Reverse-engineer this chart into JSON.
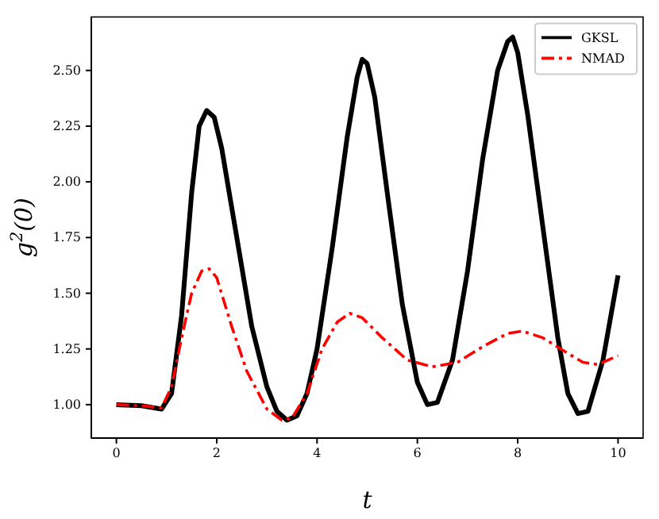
{
  "chart_data": {
    "type": "line",
    "xlabel": "t",
    "ylabel": "g$^{2}$(0)",
    "x": [
      0,
      0.5,
      0.9,
      1.1,
      1.3,
      1.5,
      1.65,
      1.8,
      1.95,
      2.1,
      2.4,
      2.7,
      3.0,
      3.2,
      3.4,
      3.6,
      3.8,
      4.0,
      4.3,
      4.6,
      4.8,
      4.9,
      5.0,
      5.15,
      5.4,
      5.7,
      6.0,
      6.2,
      6.4,
      6.7,
      7.0,
      7.3,
      7.6,
      7.8,
      7.9,
      8.0,
      8.2,
      8.5,
      8.8,
      9.0,
      9.2,
      9.4,
      9.7,
      10.0
    ],
    "series": [
      {
        "name": "GKSL",
        "color": "#000000",
        "line_style": "solid",
        "values": [
          1.0,
          0.995,
          0.98,
          1.05,
          1.4,
          1.95,
          2.25,
          2.32,
          2.29,
          2.15,
          1.75,
          1.35,
          1.08,
          0.97,
          0.93,
          0.95,
          1.05,
          1.25,
          1.7,
          2.2,
          2.47,
          2.55,
          2.53,
          2.38,
          1.95,
          1.45,
          1.1,
          1.0,
          1.01,
          1.2,
          1.6,
          2.1,
          2.5,
          2.63,
          2.65,
          2.58,
          2.3,
          1.8,
          1.3,
          1.05,
          0.96,
          0.97,
          1.2,
          1.58
        ]
      },
      {
        "name": "NMAD",
        "color": "#ff0000",
        "line_style": "dashdot",
        "x": [
          0,
          0.5,
          0.9,
          1.1,
          1.3,
          1.5,
          1.7,
          1.85,
          2.0,
          2.3,
          2.6,
          3.0,
          3.3,
          3.5,
          3.8,
          4.1,
          4.4,
          4.65,
          4.9,
          5.3,
          5.8,
          6.3,
          6.8,
          7.3,
          7.8,
          8.1,
          8.5,
          9.0,
          9.3,
          9.6,
          10.0
        ],
        "values": [
          1.0,
          0.995,
          0.985,
          1.08,
          1.3,
          1.5,
          1.6,
          1.61,
          1.57,
          1.35,
          1.15,
          0.98,
          0.93,
          0.94,
          1.05,
          1.25,
          1.37,
          1.41,
          1.39,
          1.3,
          1.2,
          1.17,
          1.19,
          1.26,
          1.32,
          1.33,
          1.3,
          1.23,
          1.19,
          1.18,
          1.22
        ]
      }
    ],
    "xlim": [
      -0.5,
      10.5
    ],
    "ylim": [
      0.85,
      2.74
    ],
    "xticks": [
      0,
      2,
      4,
      6,
      8,
      10
    ],
    "yticks": [
      {
        "value": 1,
        "label": "1.00"
      },
      {
        "value": 1.25,
        "label": "1.25"
      },
      {
        "value": 1.5,
        "label": "1.50"
      },
      {
        "value": 1.75,
        "label": "1.75"
      },
      {
        "value": 2,
        "label": "2.00"
      },
      {
        "value": 2.25,
        "label": "2.25"
      },
      {
        "value": 2.5,
        "label": "2.50"
      }
    ],
    "grid": false,
    "legend": "top right",
    "marker": "none"
  }
}
